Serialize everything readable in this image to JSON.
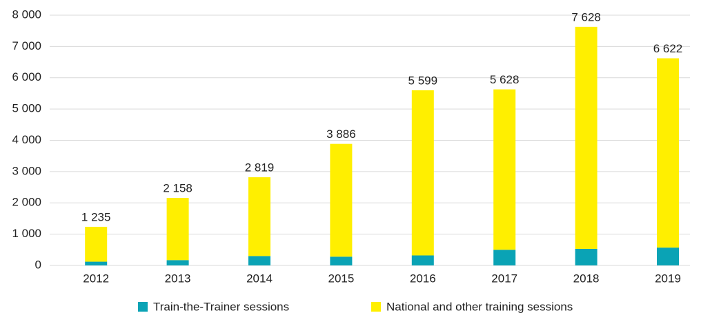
{
  "chart_data": {
    "type": "stacked_bar",
    "categories": [
      "2012",
      "2013",
      "2014",
      "2015",
      "2016",
      "2017",
      "2018",
      "2019"
    ],
    "series": [
      {
        "name": "Train-the-Trainer sessions",
        "color": "#0aa3b5",
        "values": [
          120,
          170,
          300,
          280,
          320,
          500,
          530,
          570
        ]
      },
      {
        "name": "National and other training sessions",
        "color": "#ffef00",
        "values": [
          1115,
          1988,
          2519,
          3606,
          5279,
          5128,
          7098,
          6052
        ]
      }
    ],
    "totals": [
      1235,
      2158,
      2819,
      3886,
      5599,
      5628,
      7628,
      6622
    ],
    "total_labels": [
      "1 235",
      "2 158",
      "2 819",
      "3 886",
      "5 599",
      "5 628",
      "7 628",
      "6 622"
    ],
    "ylim": [
      0,
      8000
    ],
    "yticks": [
      0,
      {
        "value": 1000,
        "label": "1 000"
      },
      {
        "value": 2000,
        "label": "2 000"
      },
      {
        "value": 3000,
        "label": "3 000"
      },
      {
        "value": 4000,
        "label": "4 000"
      },
      {
        "value": 5000,
        "label": "5 000"
      },
      {
        "value": 6000,
        "label": "6 000"
      },
      {
        "value": 7000,
        "label": "7 000"
      },
      {
        "value": 8000,
        "label": "8 000"
      }
    ],
    "grid": true,
    "legend": "bottom"
  }
}
